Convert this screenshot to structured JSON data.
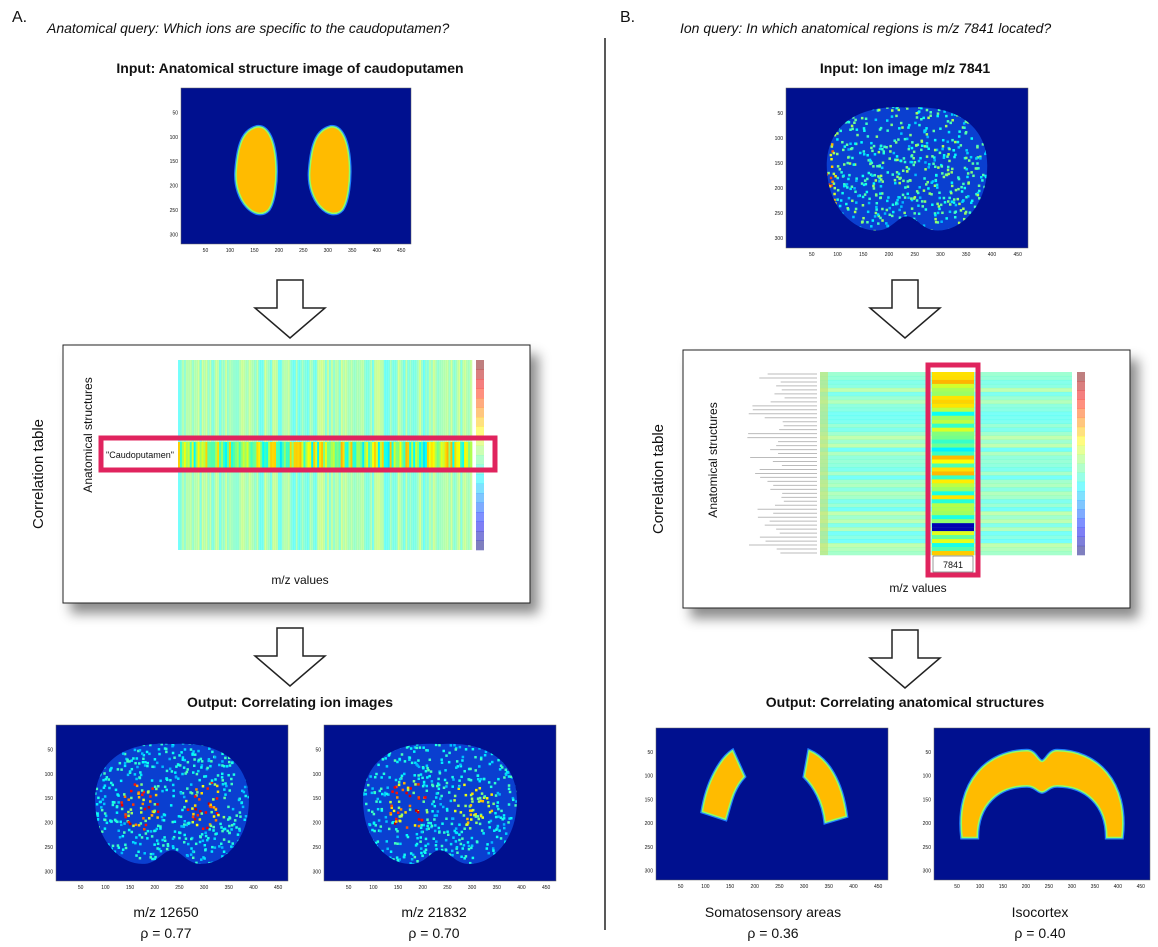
{
  "image_axes": {
    "x_ticks": [
      50,
      100,
      150,
      200,
      250,
      300,
      350,
      400,
      450
    ],
    "y_ticks": [
      50,
      100,
      150,
      200,
      250,
      300
    ]
  },
  "panels": [
    {
      "label": "A.",
      "query": "Anatomical query: Which ions are specific to the caudoputamen?",
      "input_title": "Input: Anatomical structure image of caudoputamen",
      "table": {
        "side_label": "Correlation table",
        "y_label": "Anatomical structures",
        "x_label": "m/z values",
        "highlight": "\"Caudoputamen\""
      },
      "output_title": "Output: Correlating ion images",
      "outputs": [
        {
          "name": "m/z 12650",
          "rho": "ρ = 0.77"
        },
        {
          "name": "m/z 21832",
          "rho": "ρ = 0.70"
        }
      ]
    },
    {
      "label": "B.",
      "query": "Ion query: In which anatomical regions is m/z 7841 located?",
      "input_title": "Input: Ion image m/z 7841",
      "table": {
        "side_label": "Correlation table",
        "y_label": "Anatomical structures",
        "x_label": "m/z values",
        "highlight": "7841"
      },
      "output_title": "Output: Correlating anatomical structures",
      "outputs": [
        {
          "name": "Somatosensory areas",
          "rho": "ρ = 0.36"
        },
        {
          "name": "Isocortex",
          "rho": "ρ = 0.40"
        }
      ]
    }
  ]
}
